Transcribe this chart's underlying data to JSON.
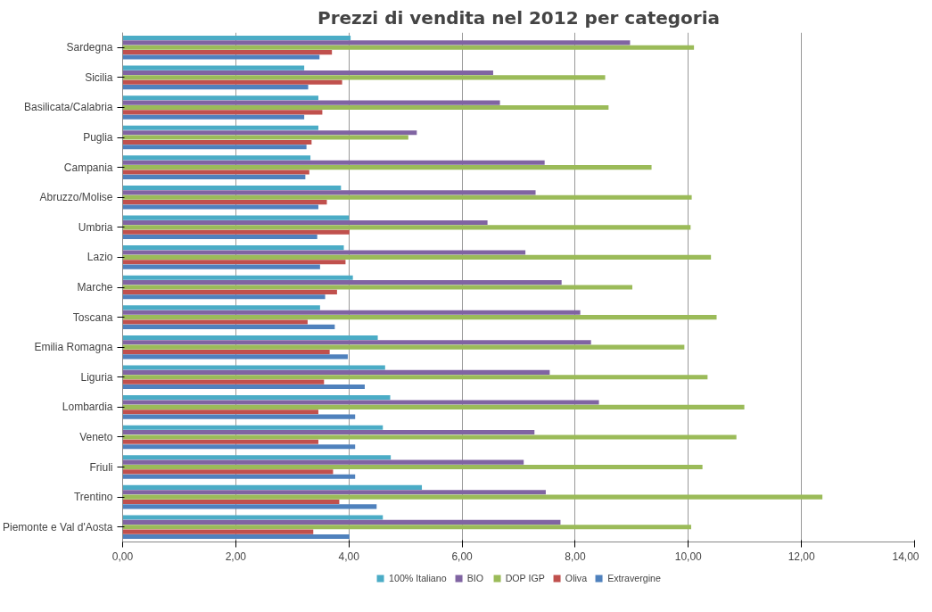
{
  "chart_data": {
    "type": "bar",
    "orientation": "horizontal",
    "title": "Prezzi di vendita nel 2012 per categoria",
    "categories": [
      "Sardegna",
      "Sicilia",
      "Basilicata/Calabria",
      "Puglia",
      "Campania",
      "Abruzzo/Molise",
      "Umbria",
      "Lazio",
      "Marche",
      "Toscana",
      "Emilia Romagna",
      "Liguria",
      "Lombardia",
      "Veneto",
      "Friuli",
      "Trentino",
      "Piemonte e Val d'Aosta"
    ],
    "series": [
      {
        "name": "100% Italiano",
        "color": "#4bacc6",
        "values": [
          4.03,
          3.21,
          3.46,
          3.46,
          3.32,
          3.86,
          4.0,
          3.91,
          4.07,
          3.49,
          4.51,
          4.64,
          4.73,
          4.6,
          4.74,
          5.29,
          4.6
        ]
      },
      {
        "name": "BIO",
        "color": "#8064a2",
        "values": [
          8.97,
          6.55,
          6.67,
          5.2,
          7.46,
          7.3,
          6.45,
          7.12,
          7.76,
          8.09,
          8.28,
          7.55,
          8.42,
          7.28,
          7.09,
          7.48,
          7.74
        ]
      },
      {
        "name": "DOP IGP",
        "color": "#9bbb59",
        "values": [
          10.1,
          8.53,
          8.59,
          5.05,
          9.35,
          10.06,
          10.04,
          10.4,
          9.01,
          10.5,
          9.93,
          10.34,
          10.99,
          10.85,
          10.25,
          12.37,
          10.05
        ]
      },
      {
        "name": "Oliva",
        "color": "#c0504d",
        "values": [
          3.7,
          3.88,
          3.53,
          3.34,
          3.3,
          3.61,
          4.01,
          3.94,
          3.79,
          3.27,
          3.66,
          3.56,
          3.46,
          3.46,
          3.72,
          3.83,
          3.37
        ]
      },
      {
        "name": "Extravergine",
        "color": "#4f81bd",
        "values": [
          3.48,
          3.28,
          3.21,
          3.25,
          3.23,
          3.46,
          3.44,
          3.49,
          3.58,
          3.75,
          3.98,
          4.28,
          4.11,
          4.11,
          4.11,
          4.49,
          4.01
        ]
      }
    ],
    "xlim": [
      0,
      14
    ],
    "xticks": [
      {
        "value": 0,
        "label": "0,00"
      },
      {
        "value": 2,
        "label": "2,00"
      },
      {
        "value": 4,
        "label": "4,00"
      },
      {
        "value": 6,
        "label": "6,00"
      },
      {
        "value": 8,
        "label": "8,00"
      },
      {
        "value": 10,
        "label": "10,00"
      },
      {
        "value": 12,
        "label": "12,00"
      },
      {
        "value": 14,
        "label": "14,00"
      }
    ],
    "grid": "x",
    "legend": "bottom"
  }
}
